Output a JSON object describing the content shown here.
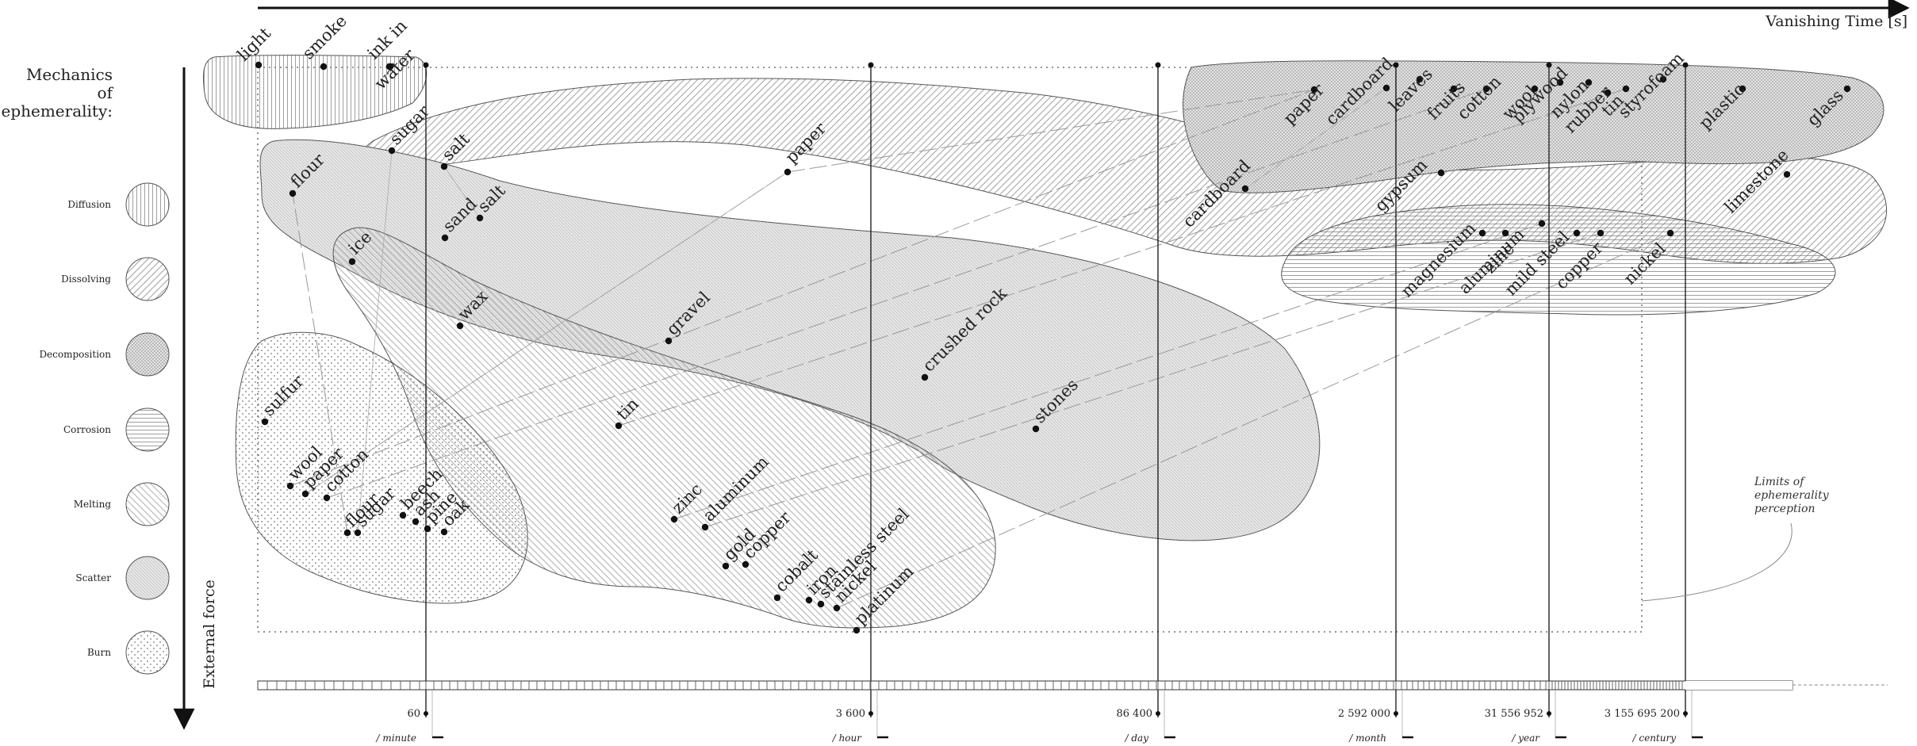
{
  "axis": {
    "x_title": "Vanishing Time [s]",
    "y_title": "External force"
  },
  "legend": {
    "title_lines": [
      "Mechanics",
      "of",
      "ephemerality:"
    ],
    "items": [
      {
        "name": "Diffusion",
        "pattern": "diffusion"
      },
      {
        "name": "Dissolving",
        "pattern": "dissolving"
      },
      {
        "name": "Decomposition",
        "pattern": "decomposition"
      },
      {
        "name": "Corrosion",
        "pattern": "corrosion"
      },
      {
        "name": "Melting",
        "pattern": "melting"
      },
      {
        "name": "Scatter",
        "pattern": "scatter"
      },
      {
        "name": "Burn",
        "pattern": "burn"
      }
    ]
  },
  "timeline": [
    {
      "value": "60",
      "unit": "/ minute"
    },
    {
      "value": "3 600",
      "unit": "/ hour"
    },
    {
      "value": "86 400",
      "unit": "/ day"
    },
    {
      "value": "2 592 000",
      "unit": "/ month"
    },
    {
      "value": "31 556 952",
      "unit": "/ year"
    },
    {
      "value": "3 155 695 200",
      "unit": "/ century"
    }
  ],
  "annotation": {
    "lines": [
      "Limits of",
      "ephemerality",
      "perception"
    ]
  },
  "regions": [
    {
      "mechanism": "Diffusion",
      "items": [
        {
          "label": "light"
        },
        {
          "label": "smoke"
        },
        {
          "label": "ink in"
        },
        {
          "label": "water"
        }
      ]
    },
    {
      "mechanism": "Dissolving",
      "items": [
        {
          "label": "sugar"
        },
        {
          "label": "salt"
        },
        {
          "label": "paper"
        },
        {
          "label": "cardboard"
        },
        {
          "label": "gypsum"
        },
        {
          "label": "limestone"
        }
      ]
    },
    {
      "mechanism": "Decomposition",
      "items": [
        {
          "label": "paper"
        },
        {
          "label": "cardboard"
        },
        {
          "label": "leaves"
        },
        {
          "label": "fruits"
        },
        {
          "label": "cotton"
        },
        {
          "label": "wool"
        },
        {
          "label": "plywood"
        },
        {
          "label": "nylon"
        },
        {
          "label": "rubber"
        },
        {
          "label": "tin"
        },
        {
          "label": "styrofoam"
        },
        {
          "label": "plastic"
        },
        {
          "label": "glass"
        }
      ]
    },
    {
      "mechanism": "Corrosion",
      "items": [
        {
          "label": "magnesium"
        },
        {
          "label": "zinc"
        },
        {
          "label": "aluminum"
        },
        {
          "label": "mild steel"
        },
        {
          "label": "copper"
        },
        {
          "label": "nickel"
        }
      ]
    },
    {
      "mechanism": "Scatter",
      "items": [
        {
          "label": "flour"
        },
        {
          "label": "sand"
        },
        {
          "label": "salt"
        },
        {
          "label": "gravel"
        },
        {
          "label": "crushed rock"
        },
        {
          "label": "stones"
        }
      ]
    },
    {
      "mechanism": "Melting",
      "items": [
        {
          "label": "ice"
        },
        {
          "label": "wax"
        },
        {
          "label": "tin"
        },
        {
          "label": "zinc"
        },
        {
          "label": "aluminum"
        },
        {
          "label": "gold"
        },
        {
          "label": "copper"
        },
        {
          "label": "cobalt"
        },
        {
          "label": "iron"
        },
        {
          "label": "stainless steel"
        },
        {
          "label": "nickel"
        },
        {
          "label": "platinum"
        }
      ]
    },
    {
      "mechanism": "Burn",
      "items": [
        {
          "label": "sulfur"
        },
        {
          "label": "wool"
        },
        {
          "label": "paper"
        },
        {
          "label": "cotton"
        },
        {
          "label": "flour"
        },
        {
          "label": "sugar"
        },
        {
          "label": "beech"
        },
        {
          "label": "ash"
        },
        {
          "label": "pine"
        },
        {
          "label": "oak"
        }
      ]
    }
  ]
}
